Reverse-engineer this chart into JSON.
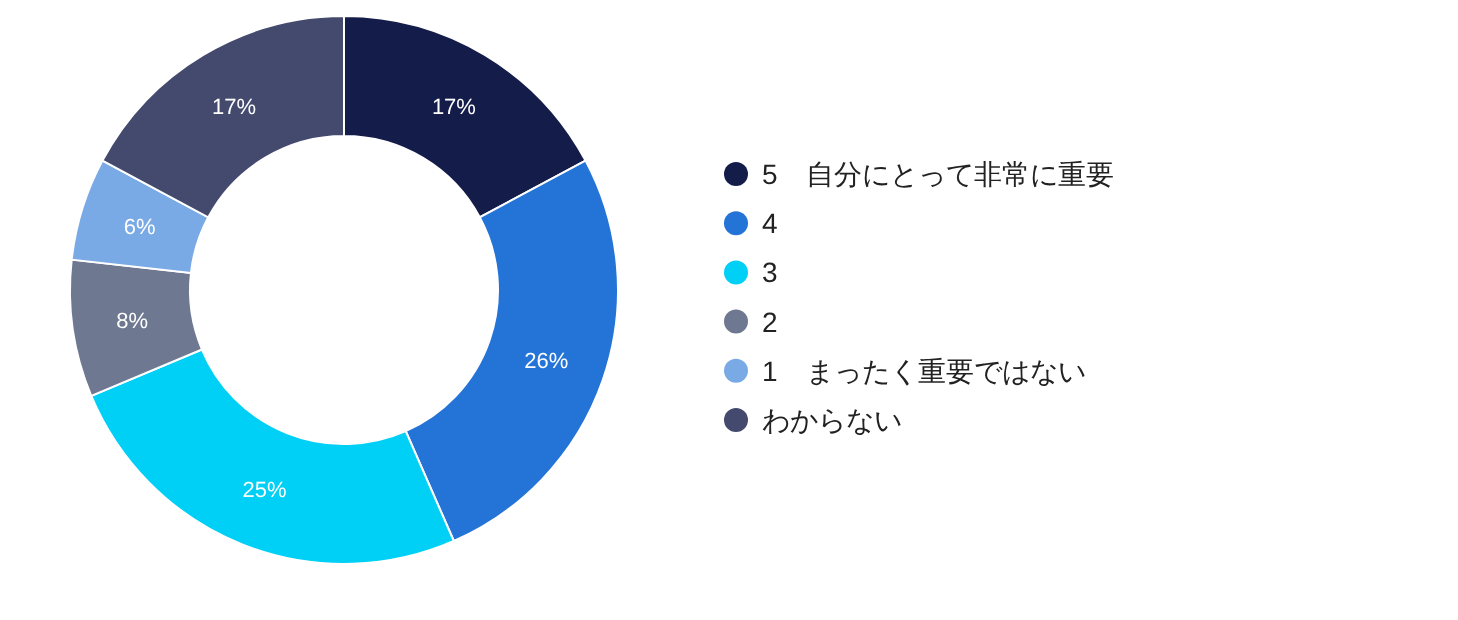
{
  "chart_data": {
    "type": "donut",
    "categories": [
      "5　自分にとって非常に重要",
      "4",
      "3",
      "2",
      "1　まったく重要ではない",
      "わからない"
    ],
    "values": [
      17,
      26,
      25,
      8,
      6,
      17
    ],
    "colors": [
      "#141c4a",
      "#2474d8",
      "#00d0f5",
      "#6e7891",
      "#7aaae6",
      "#444a6e"
    ],
    "value_labels": [
      "17%",
      "26%",
      "25%",
      "8%",
      "6%",
      "17%"
    ],
    "legend": "right"
  }
}
